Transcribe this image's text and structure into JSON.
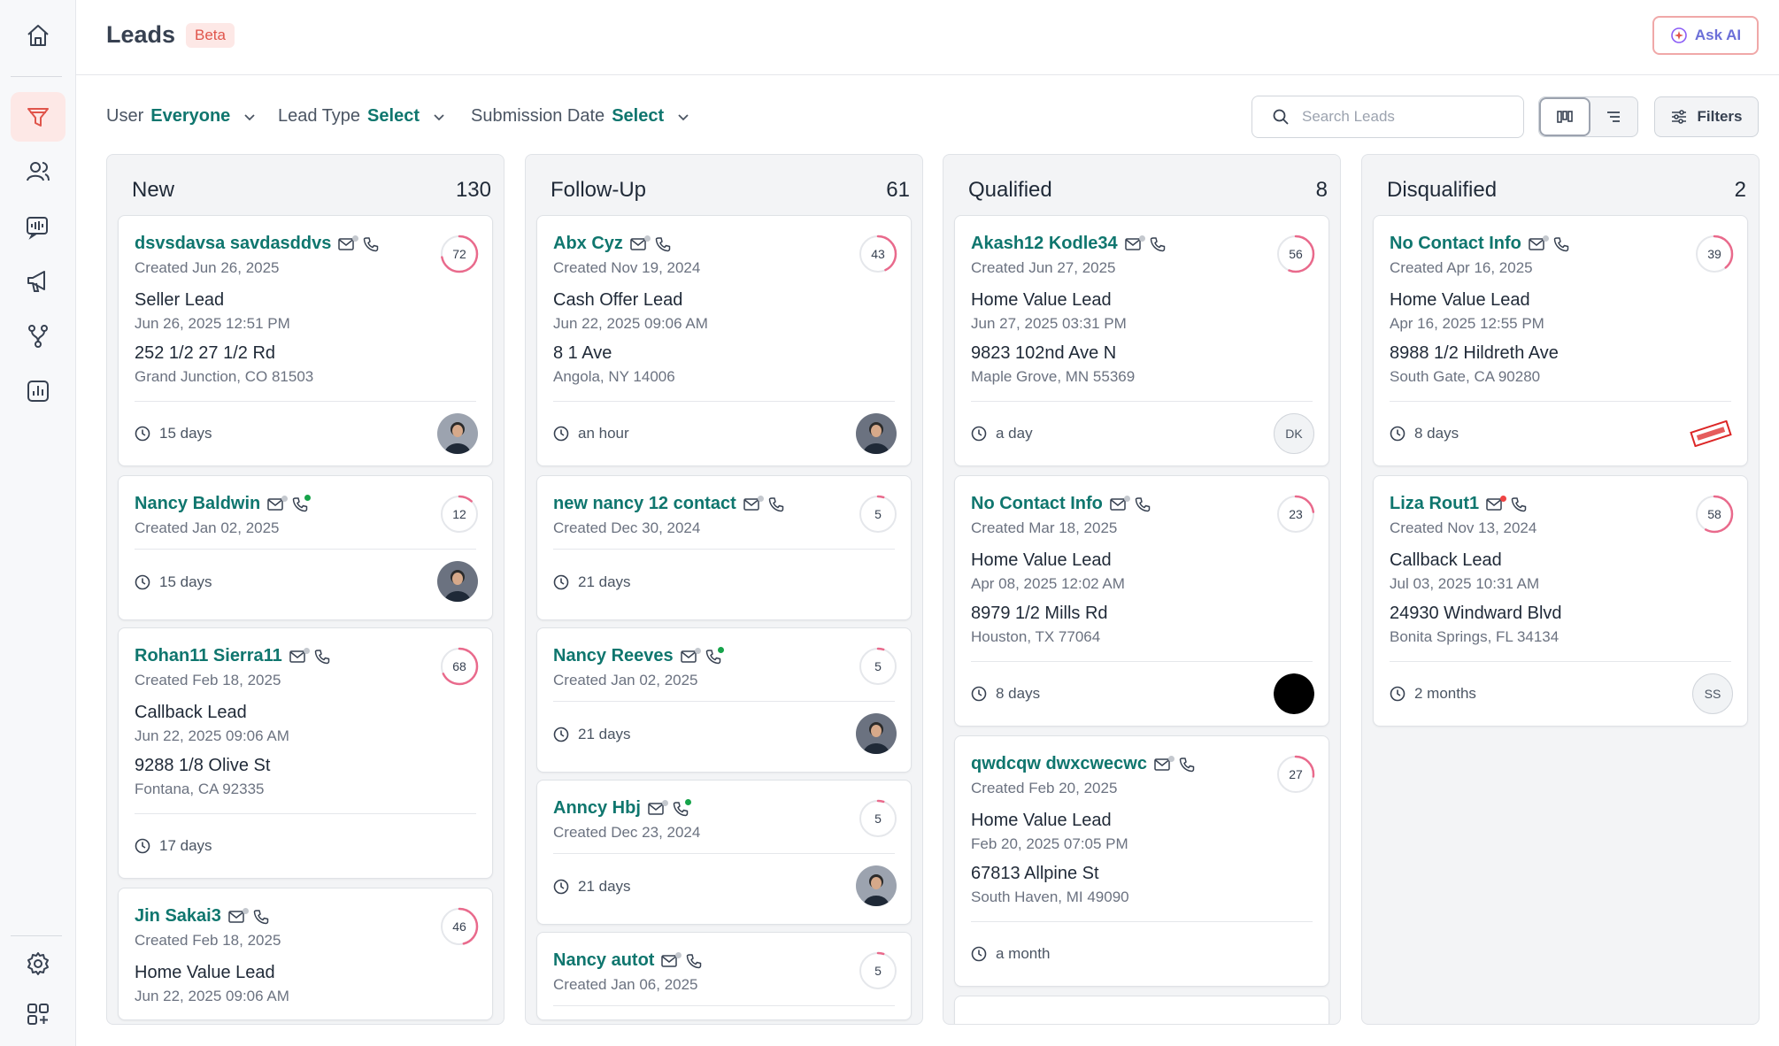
{
  "header": {
    "title": "Leads",
    "badge": "Beta",
    "ask_ai_label": "Ask AI"
  },
  "filters": [
    {
      "label": "User",
      "value": "Everyone"
    },
    {
      "label": "Lead Type",
      "value": "Select"
    },
    {
      "label": "Submission Date",
      "value": "Select"
    }
  ],
  "search": {
    "placeholder": "Search Leads"
  },
  "filters_button_label": "Filters",
  "sidebar": {
    "top_items": [
      "home-icon",
      "funnel-icon",
      "contacts-icon",
      "voice-ai-icon",
      "megaphone-icon",
      "workflow-icon",
      "reports-icon"
    ],
    "bottom_items": [
      "settings-icon",
      "apps-icon"
    ],
    "active": "funnel-icon"
  },
  "columns": [
    {
      "title": "New",
      "count": "130",
      "cards": [
        {
          "name": "dsvsdavsa savdasddvs",
          "created": "Created Jun 26, 2025",
          "score": "72",
          "lead_type": "Seller Lead",
          "lead_date": "Jun 26, 2025 12:51 PM",
          "address": "252 1/2 27 1/2 Rd",
          "city": "Grand Junction, CO 81503",
          "age": "15 days",
          "avatar": "photo"
        },
        {
          "name": "Nancy Baldwin",
          "created": "Created Jan 02, 2025",
          "score": "12",
          "age": "15 days",
          "avatar": "photo",
          "phone_dot": "green"
        },
        {
          "name": "Rohan11 Sierra11",
          "created": "Created Feb 18, 2025",
          "score": "68",
          "lead_type": "Callback Lead",
          "lead_date": "Jun 22, 2025 09:06 AM",
          "address": "9288 1/8 Olive St",
          "city": "Fontana, CA 92335",
          "age": "17 days",
          "avatar": "none"
        },
        {
          "name": "Jin Sakai3",
          "created": "Created Feb 18, 2025",
          "score": "46",
          "lead_type": "Home Value Lead",
          "lead_date": "Jun 22, 2025 09:06 AM",
          "avatar": "none"
        }
      ]
    },
    {
      "title": "Follow-Up",
      "count": "61",
      "cards": [
        {
          "name": "Abx Cyz",
          "created": "Created Nov 19, 2024",
          "score": "43",
          "lead_type": "Cash Offer Lead",
          "lead_date": "Jun 22, 2025 09:06 AM",
          "address": "8 1 Ave",
          "city": "Angola, NY 14006",
          "age": "an hour",
          "avatar": "photo"
        },
        {
          "name": "new nancy 12 contact",
          "created": "Created Dec 30, 2024",
          "score": "5",
          "age": "21 days",
          "avatar": "none"
        },
        {
          "name": "Nancy Reeves",
          "created": "Created Jan 02, 2025",
          "score": "5",
          "age": "21 days",
          "avatar": "photo",
          "phone_dot": "green"
        },
        {
          "name": "Anncy Hbj",
          "created": "Created Dec 23, 2024",
          "score": "5",
          "age": "21 days",
          "avatar": "photo",
          "phone_dot": "green"
        },
        {
          "name": "Nancy autot",
          "created": "Created Jan 06, 2025",
          "score": "5",
          "avatar": "none"
        }
      ]
    },
    {
      "title": "Qualified",
      "count": "8",
      "cards": [
        {
          "name": "Akash12 Kodle34",
          "created": "Created Jun 27, 2025",
          "score": "56",
          "lead_type": "Home Value Lead",
          "lead_date": "Jun 27, 2025 03:31 PM",
          "address": "9823 102nd Ave N",
          "city": "Maple Grove, MN 55369",
          "age": "a day",
          "avatar": "initials",
          "initials": "DK"
        },
        {
          "name": "No Contact Info",
          "created": "Created Mar 18, 2025",
          "score": "23",
          "lead_type": "Home Value Lead",
          "lead_date": "Apr 08, 2025 12:02 AM",
          "address": "8979 1/2 Mills Rd",
          "city": "Houston, TX 77064",
          "age": "8 days",
          "avatar": "dark"
        },
        {
          "name": "qwdcqw dwxcwecwc",
          "created": "Created Feb 20, 2025",
          "score": "27",
          "lead_type": "Home Value Lead",
          "lead_date": "Feb 20, 2025 07:05 PM",
          "address": "67813 Allpine St",
          "city": "South Haven, MI 49090",
          "age": "a month",
          "avatar": "none"
        }
      ]
    },
    {
      "title": "Disqualified",
      "count": "2",
      "cards": [
        {
          "name": "No Contact Info",
          "created": "Created Apr 16, 2025",
          "score": "39",
          "lead_type": "Home Value Lead",
          "lead_date": "Apr 16, 2025 12:55 PM",
          "address": "8988 1/2 Hildreth Ave",
          "city": "South Gate, CA 90280",
          "age": "8 days",
          "avatar": "sample"
        },
        {
          "name": "Liza Rout1",
          "created": "Created Nov 13, 2024",
          "score": "58",
          "lead_type": "Callback Lead",
          "lead_date": "Jul 03, 2025 10:31 AM",
          "address": "24930 Windward Blvd",
          "city": "Bonita Springs, FL 34134",
          "age": "2 months",
          "avatar": "initials",
          "initials": "SS",
          "email_dot": "red"
        }
      ]
    }
  ],
  "sample_stamp": "SAMPLE",
  "colors": {
    "brand": "#0f766e",
    "accent": "#e0554b",
    "score_gradient": [
      "#f06b6b",
      "#6b6fd8"
    ],
    "online_dot": "#16a34a",
    "alert_dot": "#ef4444"
  }
}
